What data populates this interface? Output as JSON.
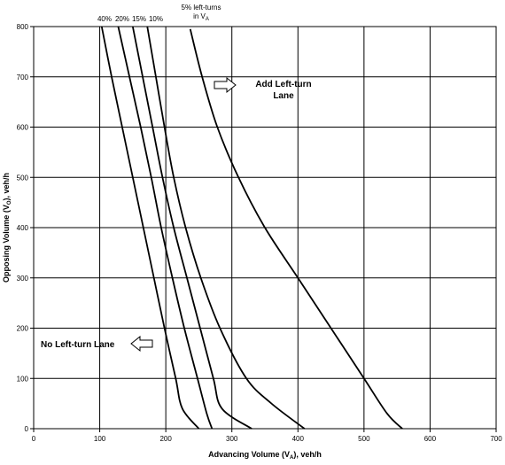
{
  "chart_data": {
    "type": "line",
    "title": "",
    "xlabel": {
      "main": "Advancing Volume (V",
      "sub": "A",
      "tail": "), veh/h"
    },
    "ylabel": {
      "main": "Opposing Volume (V",
      "sub": "O",
      "tail": "), veh/h"
    },
    "xlim": [
      0,
      700
    ],
    "ylim": [
      0,
      800
    ],
    "x_ticks": [
      0,
      100,
      200,
      300,
      400,
      500,
      600,
      700
    ],
    "y_ticks": [
      0,
      100,
      200,
      300,
      400,
      500,
      600,
      700,
      800
    ],
    "grid": true,
    "series": [
      {
        "name": "40%",
        "points": [
          [
            103,
            800
          ],
          [
            118,
            700
          ],
          [
            134,
            600
          ],
          [
            150,
            500
          ],
          [
            166,
            400
          ],
          [
            182,
            300
          ],
          [
            198,
            200
          ],
          [
            215,
            100
          ],
          [
            225,
            40
          ],
          [
            250,
            0
          ]
        ]
      },
      {
        "name": "20%",
        "points": [
          [
            128,
            800
          ],
          [
            145,
            700
          ],
          [
            162,
            600
          ],
          [
            178,
            500
          ],
          [
            193,
            400
          ],
          [
            210,
            300
          ],
          [
            228,
            200
          ],
          [
            248,
            100
          ],
          [
            262,
            30
          ],
          [
            270,
            0
          ]
        ]
      },
      {
        "name": "15%",
        "points": [
          [
            150,
            800
          ],
          [
            165,
            700
          ],
          [
            180,
            600
          ],
          [
            195,
            500
          ],
          [
            212,
            400
          ],
          [
            232,
            300
          ],
          [
            252,
            200
          ],
          [
            272,
            100
          ],
          [
            285,
            40
          ],
          [
            330,
            0
          ]
        ]
      },
      {
        "name": "10%",
        "points": [
          [
            172,
            800
          ],
          [
            185,
            700
          ],
          [
            198,
            600
          ],
          [
            212,
            500
          ],
          [
            230,
            400
          ],
          [
            253,
            300
          ],
          [
            282,
            200
          ],
          [
            322,
            100
          ],
          [
            360,
            50
          ],
          [
            410,
            0
          ]
        ]
      },
      {
        "name": "5% left-turns in V",
        "name_sub": "A",
        "points": [
          [
            237,
            795
          ],
          [
            255,
            700
          ],
          [
            278,
            600
          ],
          [
            310,
            500
          ],
          [
            350,
            400
          ],
          [
            400,
            300
          ],
          [
            450,
            200
          ],
          [
            500,
            100
          ],
          [
            535,
            30
          ],
          [
            558,
            0
          ]
        ]
      }
    ],
    "annotations": {
      "add_left_turn_line1": "Add Left-turn",
      "add_left_turn_line2": "Lane",
      "no_left_turn": "No Left-turn Lane"
    }
  }
}
